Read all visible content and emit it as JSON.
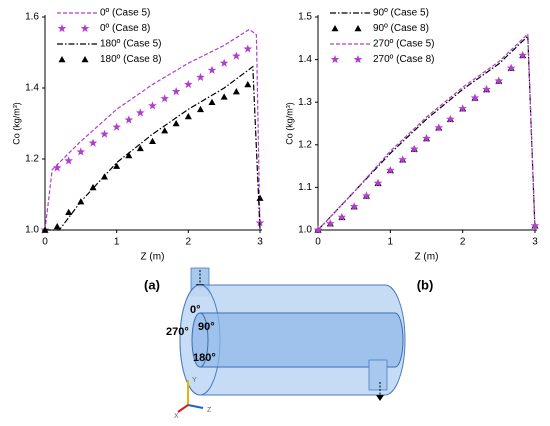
{
  "chart_data": [
    {
      "type": "line",
      "xlabel": "Z (m)",
      "ylabel": "Co (kg/m³)",
      "xlim": [
        0,
        3
      ],
      "ylim": [
        1.0,
        1.6
      ],
      "xticks": [
        0,
        1,
        2,
        3
      ],
      "yticks": [
        {
          "value": 1.0,
          "label": "1.0"
        },
        1.2,
        1.4,
        1.6
      ],
      "legend": "upper left",
      "series": [
        {
          "name": "0º (Case 5)",
          "color": "#b13fcc",
          "style": "dashed",
          "marker": "none",
          "x": [
            0,
            0.1,
            0.5,
            1,
            1.5,
            2,
            2.5,
            2.85,
            2.95,
            3.0
          ],
          "values": [
            1.0,
            1.17,
            1.25,
            1.34,
            1.41,
            1.47,
            1.52,
            1.565,
            1.55,
            1.0
          ]
        },
        {
          "name": "0º (Case 8)",
          "color": "#b13fcc",
          "style": "none",
          "marker": "star",
          "x": [
            0,
            0.17,
            0.33,
            0.5,
            0.67,
            0.83,
            1.0,
            1.17,
            1.33,
            1.5,
            1.67,
            1.83,
            2.0,
            2.17,
            2.33,
            2.5,
            2.67,
            2.83,
            3.0
          ],
          "values": [
            1.0,
            1.175,
            1.195,
            1.22,
            1.245,
            1.27,
            1.29,
            1.31,
            1.33,
            1.35,
            1.37,
            1.39,
            1.41,
            1.43,
            1.45,
            1.47,
            1.49,
            1.51,
            1.02
          ]
        },
        {
          "name": "180º (Case 5)",
          "color": "#000000",
          "style": "dashdot",
          "marker": "none",
          "x": [
            0,
            0.2,
            0.5,
            1,
            1.5,
            2,
            2.5,
            2.9,
            3.0
          ],
          "values": [
            1.0,
            1.0,
            1.08,
            1.19,
            1.27,
            1.34,
            1.4,
            1.46,
            1.0
          ]
        },
        {
          "name": "180º (Case 8)",
          "color": "#000000",
          "style": "none",
          "marker": "triangle",
          "x": [
            0,
            0.17,
            0.33,
            0.5,
            0.67,
            0.83,
            1.0,
            1.17,
            1.33,
            1.5,
            1.67,
            1.83,
            2.0,
            2.17,
            2.33,
            2.5,
            2.67,
            2.83,
            3.0
          ],
          "values": [
            1.0,
            1.01,
            1.05,
            1.08,
            1.12,
            1.15,
            1.18,
            1.21,
            1.23,
            1.25,
            1.28,
            1.3,
            1.32,
            1.34,
            1.36,
            1.375,
            1.39,
            1.41,
            1.09
          ]
        }
      ]
    },
    {
      "type": "line",
      "xlabel": "Z (m)",
      "ylabel": "Co (kg/m³)",
      "xlim": [
        0,
        3
      ],
      "ylim": [
        1.0,
        1.5
      ],
      "xticks": [
        0,
        1,
        2,
        3
      ],
      "yticks": [
        {
          "value": 1.0,
          "label": "1.0"
        },
        1.1,
        1.2,
        1.3,
        1.4,
        1.5
      ],
      "legend": "upper left",
      "series": [
        {
          "name": "90º (Case 5)",
          "color": "#000000",
          "style": "dashdot",
          "marker": "none",
          "x": [
            0,
            0.5,
            1,
            1.5,
            2,
            2.5,
            2.9,
            3.0
          ],
          "values": [
            1.0,
            1.09,
            1.18,
            1.26,
            1.33,
            1.39,
            1.455,
            1.0
          ]
        },
        {
          "name": "90º (Case 8)",
          "color": "#000000",
          "style": "none",
          "marker": "triangle",
          "x": [
            0,
            0.17,
            0.33,
            0.5,
            0.67,
            0.83,
            1.0,
            1.17,
            1.33,
            1.5,
            1.67,
            1.83,
            2.0,
            2.17,
            2.33,
            2.5,
            2.67,
            2.83,
            3.0
          ],
          "values": [
            1.0,
            1.015,
            1.03,
            1.055,
            1.08,
            1.11,
            1.14,
            1.165,
            1.19,
            1.215,
            1.24,
            1.26,
            1.285,
            1.31,
            1.33,
            1.35,
            1.38,
            1.41,
            1.01
          ]
        },
        {
          "name": "270º (Case 5)",
          "color": "#b13fcc",
          "style": "dashed",
          "marker": "none",
          "x": [
            0,
            0.5,
            1,
            1.5,
            2,
            2.5,
            2.9,
            3.0
          ],
          "values": [
            1.0,
            1.09,
            1.185,
            1.265,
            1.335,
            1.395,
            1.46,
            1.0
          ]
        },
        {
          "name": "270º (Case 8)",
          "color": "#b13fcc",
          "style": "none",
          "marker": "star",
          "x": [
            0,
            0.17,
            0.33,
            0.5,
            0.67,
            0.83,
            1.0,
            1.17,
            1.33,
            1.5,
            1.67,
            1.83,
            2.0,
            2.17,
            2.33,
            2.5,
            2.67,
            2.83,
            3.0
          ],
          "values": [
            1.0,
            1.015,
            1.03,
            1.055,
            1.08,
            1.11,
            1.14,
            1.165,
            1.19,
            1.215,
            1.24,
            1.26,
            1.285,
            1.31,
            1.33,
            1.35,
            1.38,
            1.41,
            1.01
          ]
        }
      ]
    }
  ],
  "panel_labels": [
    "(a)",
    "(b)"
  ],
  "diagram": {
    "labels": [
      "0°",
      "270°",
      "90°",
      "180°"
    ],
    "axes": [
      "Y",
      "X",
      "Z"
    ]
  }
}
